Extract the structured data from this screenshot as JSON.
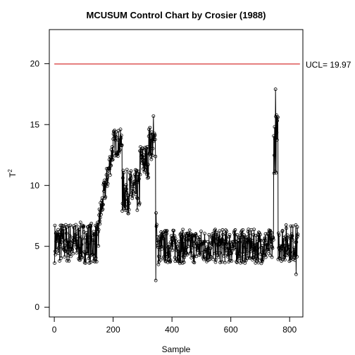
{
  "chart_data": {
    "type": "line",
    "title": "MCUSUM Control Chart by Crosier (1988)",
    "xlabel": "Sample",
    "ylabel": "T",
    "ylabel_superscript": "2",
    "xlim": [
      -17,
      845
    ],
    "ylim": [
      -0.8,
      22.8
    ],
    "xticks": [
      0,
      200,
      400,
      600,
      800
    ],
    "yticks": [
      0,
      5,
      10,
      15,
      20
    ],
    "ucl": {
      "value": 19.97,
      "label": "UCL= 19.97",
      "color": "#cc0000"
    },
    "series": [
      {
        "marker": "open-circle",
        "color": "#000000",
        "n_points": 828,
        "segments": [
          {
            "from": 1,
            "to": 150,
            "level": 5.3,
            "amplitude": 1.2
          },
          {
            "from": 150,
            "to": 200,
            "level_start": 6.8,
            "level_end": 13.2,
            "amplitude": 0.8
          },
          {
            "from": 200,
            "to": 230,
            "level": 13.5,
            "amplitude": 0.8
          },
          {
            "from": 230,
            "to": 290,
            "level": 9.5,
            "amplitude": 1.3
          },
          {
            "from": 290,
            "to": 320,
            "level": 12.0,
            "amplitude": 1.0
          },
          {
            "from": 320,
            "to": 345,
            "level": 13.5,
            "amplitude": 1.0
          },
          {
            "from": 345,
            "to": 355,
            "level_start": 8.0,
            "level_end": 3.5,
            "amplitude": 0.6
          },
          {
            "from": 355,
            "to": 745,
            "level": 5.0,
            "amplitude": 1.0
          },
          {
            "from": 745,
            "to": 760,
            "level": 13.5,
            "amplitude": 1.8
          },
          {
            "from": 760,
            "to": 828,
            "level": 5.3,
            "amplitude": 1.1
          }
        ],
        "key_points": [
          {
            "x": 337,
            "y": 15.7
          },
          {
            "x": 345,
            "y": 2.2
          },
          {
            "x": 752,
            "y": 17.9
          },
          {
            "x": 822,
            "y": 2.7
          }
        ]
      }
    ]
  }
}
